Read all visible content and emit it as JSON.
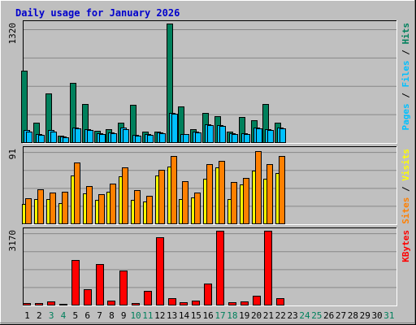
{
  "title": "Daily usage for January 2026",
  "colors": {
    "background": "#bfbfbf",
    "title": "#0000cc",
    "hits": "#00805c",
    "files": "#00c0ff",
    "pages": "#00c0ff",
    "visits": "#ffff00",
    "sites": "#ff8000",
    "kbytes": "#ff0000",
    "day_weekday": "#000000",
    "day_weekend": "#00805c"
  },
  "panels": {
    "top": {
      "ymax_label": "1320",
      "legend": [
        {
          "text": "Pages",
          "color_key": "pages"
        },
        {
          "text": " / ",
          "color_key": "day_weekday"
        },
        {
          "text": "Files",
          "color_key": "files"
        },
        {
          "text": " / ",
          "color_key": "day_weekday"
        },
        {
          "text": "Hits",
          "color_key": "hits"
        }
      ]
    },
    "middle": {
      "ymax_label": "91",
      "legend": [
        {
          "text": "Sites",
          "color_key": "sites"
        },
        {
          "text": " / ",
          "color_key": "day_weekday"
        },
        {
          "text": "Visits",
          "color_key": "visits"
        }
      ]
    },
    "bottom": {
      "ymax_label": "3170",
      "legend": [
        {
          "text": "KBytes",
          "color_key": "kbytes"
        }
      ]
    }
  },
  "chart_data": {
    "type": "bar",
    "title": "Daily usage for January 2026",
    "categories": [
      "1",
      "2",
      "3",
      "4",
      "5",
      "6",
      "7",
      "8",
      "9",
      "10",
      "11",
      "12",
      "13",
      "14",
      "15",
      "16",
      "17",
      "18",
      "19",
      "20",
      "21",
      "22",
      "23",
      "24",
      "25",
      "26",
      "27",
      "28",
      "29",
      "30",
      "31"
    ],
    "weekend_days": [
      "3",
      "4",
      "10",
      "11",
      "17",
      "18",
      "24",
      "25",
      "31"
    ],
    "panels": [
      {
        "name": "top",
        "ylim": [
          0,
          1320
        ],
        "series": [
          {
            "name": "Hits",
            "color_key": "hits",
            "values": [
              795,
              225,
              550,
              80,
              667,
              432,
              135,
              150,
              225,
              423,
              125,
              125,
              1320,
              408,
              152,
              330,
              295,
              125,
              285,
              255,
              433,
              225,
              0,
              0,
              0,
              0,
              0,
              0,
              0,
              0,
              0
            ]
          },
          {
            "name": "Files",
            "color_key": "files",
            "values": [
              140,
              95,
              140,
              70,
              175,
              150,
              110,
              120,
              170,
              90,
              100,
              120,
              335,
              100,
              130,
              210,
              200,
              110,
              110,
              175,
              150,
              175,
              0,
              0,
              0,
              0,
              0,
              0,
              0,
              0,
              0
            ]
          },
          {
            "name": "Pages",
            "color_key": "pages",
            "values": [
              130,
              90,
              130,
              60,
              165,
              140,
              100,
              110,
              155,
              80,
              90,
              110,
              325,
              95,
              120,
              195,
              185,
              100,
              100,
              165,
              140,
              165,
              0,
              0,
              0,
              0,
              0,
              0,
              0,
              0,
              0
            ]
          }
        ]
      },
      {
        "name": "middle",
        "ylim": [
          0,
          91
        ],
        "series": [
          {
            "name": "Visits",
            "color_key": "visits",
            "values": [
              25,
              31,
              31,
              26,
              59,
              38,
              30,
              40,
              58,
              30,
              28,
              59,
              70,
              31,
              33,
              55,
              69,
              31,
              48,
              65,
              55,
              62,
              0,
              0,
              0,
              0,
              0,
              0,
              0,
              0,
              0
            ]
          },
          {
            "name": "Sites",
            "color_key": "sites",
            "values": [
              32,
              43,
              39,
              40,
              75,
              46,
              37,
              49,
              69,
              42,
              35,
              66,
              83,
              52,
              39,
              73,
              77,
              51,
              56,
              89,
              73,
              83,
              0,
              0,
              0,
              0,
              0,
              0,
              0,
              0,
              0
            ]
          }
        ]
      },
      {
        "name": "bottom",
        "ylim": [
          0,
          3170
        ],
        "series": [
          {
            "name": "KBytes",
            "color_key": "kbytes",
            "values": [
              110,
              110,
              180,
              60,
              1930,
              680,
              1770,
              190,
              1480,
              90,
              630,
              2910,
              320,
              130,
              190,
              920,
              3170,
              130,
              160,
              400,
              3170,
              320,
              0,
              0,
              0,
              0,
              0,
              0,
              0,
              0,
              0
            ]
          }
        ]
      }
    ]
  }
}
